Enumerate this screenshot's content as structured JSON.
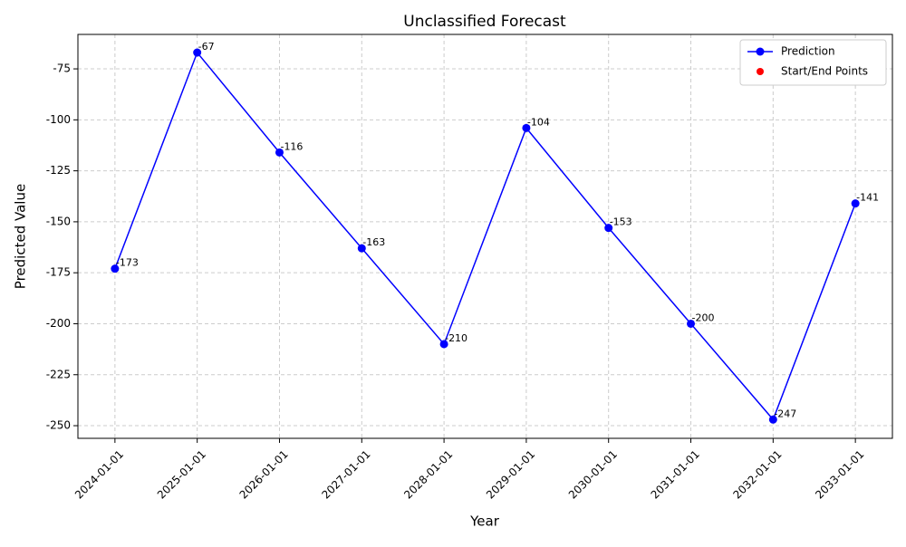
{
  "chart_data": {
    "type": "line",
    "title": "Unclassified Forecast",
    "xlabel": "Year",
    "ylabel": "Predicted Value",
    "categories": [
      "2024-01-01",
      "2025-01-01",
      "2026-01-01",
      "2027-01-01",
      "2028-01-01",
      "2029-01-01",
      "2030-01-01",
      "2031-01-01",
      "2032-01-01",
      "2033-01-01"
    ],
    "series": [
      {
        "name": "Prediction",
        "color": "#0000ff",
        "values": [
          -173,
          -67,
          -116,
          -163,
          -210,
          -104,
          -153,
          -200,
          -247,
          -141
        ]
      },
      {
        "name": "Start/End Points",
        "color": "#ff0000",
        "values": [
          -173,
          null,
          null,
          null,
          null,
          null,
          null,
          null,
          null,
          -141
        ]
      }
    ],
    "ylim": [
      -256.2,
      -58.1
    ],
    "yticks": [
      -250,
      -225,
      -200,
      -175,
      -150,
      -125,
      -100,
      -75
    ],
    "grid": true,
    "legend": "upper right"
  }
}
